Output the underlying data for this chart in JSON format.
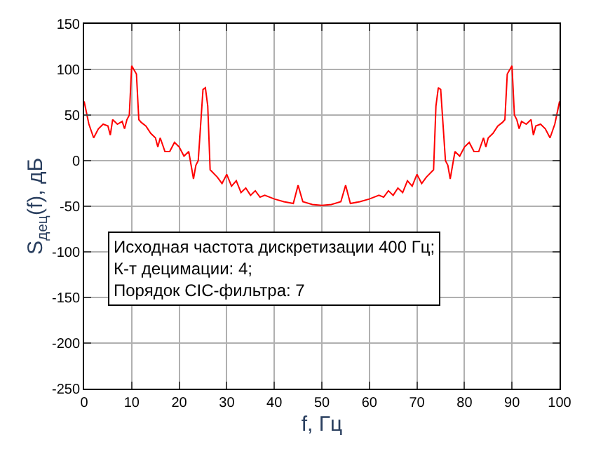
{
  "chart_data": {
    "type": "line",
    "xlabel": "f, Гц",
    "ylabel": "S$_{дец}$(f), дБ",
    "x": [
      0,
      1,
      2,
      3,
      4,
      5,
      5.5,
      6,
      7,
      8,
      8.5,
      9,
      9.5,
      10,
      11,
      11.5,
      12,
      13,
      14,
      15,
      15.5,
      16,
      17,
      18,
      19,
      20,
      21,
      22,
      22.5,
      23,
      23.5,
      24,
      25,
      25.5,
      26,
      26.5,
      28,
      29,
      30,
      31,
      32,
      33,
      34,
      35,
      36,
      37,
      38,
      40,
      42,
      44,
      45,
      46,
      48,
      50,
      52,
      54,
      55,
      56,
      58,
      60,
      62,
      63,
      64,
      65,
      66,
      67,
      68,
      69,
      70,
      71,
      72,
      73.5,
      74,
      74.5,
      75,
      76,
      76.5,
      77,
      77.5,
      78,
      79,
      80,
      81,
      82,
      83,
      84,
      84.5,
      85,
      86,
      87,
      88,
      88.5,
      89,
      90,
      90.5,
      91,
      91.5,
      92,
      93,
      94,
      94.5,
      95,
      96,
      97,
      98,
      99,
      100
    ],
    "series": [
      {
        "color": "#ff0000",
        "values": [
          65,
          40,
          25,
          35,
          40,
          38,
          28,
          45,
          40,
          43,
          35,
          45,
          50,
          104,
          95,
          45,
          42,
          38,
          30,
          25,
          15,
          25,
          10,
          10,
          20,
          15,
          5,
          10,
          -5,
          -20,
          -5,
          0,
          78,
          80,
          60,
          -10,
          -18,
          -25,
          -15,
          -28,
          -22,
          -35,
          -30,
          -38,
          -33,
          -40,
          -38,
          -42,
          -45,
          -47,
          -27,
          -45,
          -48,
          -49,
          -48,
          -45,
          -27,
          -47,
          -45,
          -42,
          -38,
          -40,
          -33,
          -38,
          -30,
          -35,
          -22,
          -28,
          -15,
          -25,
          -18,
          -10,
          60,
          80,
          78,
          0,
          -5,
          -20,
          -5,
          10,
          5,
          15,
          20,
          10,
          10,
          25,
          15,
          25,
          30,
          38,
          42,
          45,
          95,
          104,
          50,
          45,
          35,
          43,
          40,
          45,
          28,
          38,
          40,
          35,
          25,
          40,
          65
        ]
      }
    ],
    "xlim": [
      0,
      100
    ],
    "xticks": [
      0,
      10,
      20,
      30,
      40,
      50,
      60,
      70,
      80,
      90,
      100
    ],
    "ylim": [
      -250,
      150
    ],
    "yticks": [
      -250,
      -200,
      -150,
      -100,
      -50,
      0,
      50,
      100,
      150
    ],
    "grid": true,
    "line_style": "solid",
    "annotations": [
      "Исходная частота дискретизации 400 Гц;\nК-т децимации: 4;\nПорядок CIC-фильтра: 7"
    ]
  }
}
